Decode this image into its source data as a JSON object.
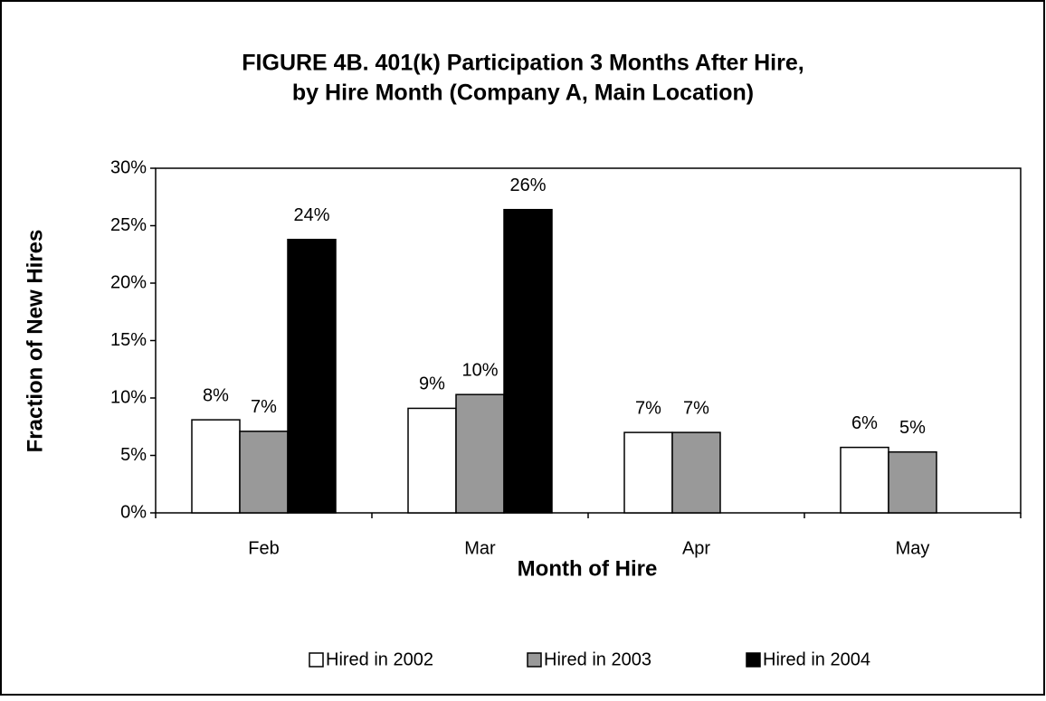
{
  "chart_data": {
    "type": "bar",
    "title": [
      "FIGURE 4B. 401(k) Participation 3 Months After Hire,",
      "by Hire Month (Company A, Main Location)"
    ],
    "x_label": "Month of Hire",
    "y_label": "Fraction of New Hires",
    "categories": [
      "Feb",
      "Mar",
      "Apr",
      "May"
    ],
    "series": [
      {
        "name": "Hired in 2002",
        "color": "#ffffff",
        "values": [
          8.1,
          9.1,
          7.0,
          5.7
        ],
        "value_labels": [
          "8%",
          "9%",
          "7%",
          "6%"
        ]
      },
      {
        "name": "Hired in 2003",
        "color": "#999999",
        "values": [
          7.1,
          10.3,
          7.0,
          5.3
        ],
        "value_labels": [
          "7%",
          "10%",
          "7%",
          "5%"
        ]
      },
      {
        "name": "Hired in 2004",
        "color": "#000000",
        "values": [
          23.8,
          26.4,
          null,
          null
        ],
        "value_labels": [
          "24%",
          "26%",
          null,
          null
        ]
      }
    ],
    "ylim": [
      0,
      30
    ],
    "yticks": [
      {
        "value": 0,
        "label": "0%"
      },
      {
        "value": 5,
        "label": "5%"
      },
      {
        "value": 10,
        "label": "10%"
      },
      {
        "value": 15,
        "label": "15%"
      },
      {
        "value": 20,
        "label": "20%"
      },
      {
        "value": 25,
        "label": "25%"
      },
      {
        "value": 30,
        "label": "30%"
      }
    ],
    "legend": "bottom"
  }
}
